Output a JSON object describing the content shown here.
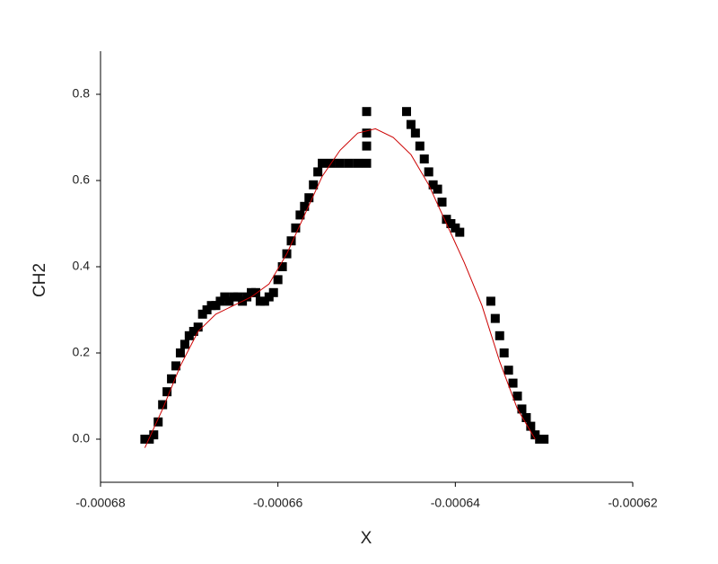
{
  "chart_data": {
    "type": "scatter",
    "xlabel": "X",
    "ylabel": "CH2",
    "xlim": [
      -0.00068,
      -0.00062
    ],
    "xticks": [
      -0.00068,
      -0.00066,
      -0.00064,
      -0.00062
    ],
    "ylim": [
      -0.1,
      0.9
    ],
    "yticks": [
      {
        "value": 0,
        "label": "0.0"
      },
      {
        "value": 0.2,
        "label": "0.2"
      },
      {
        "value": 0.4,
        "label": "0.4"
      },
      {
        "value": 0.6,
        "label": "0.6"
      },
      {
        "value": 0.8,
        "label": "0.8"
      }
    ],
    "grid": false,
    "series": [
      {
        "color": "#000000",
        "mark": "square",
        "x": [
          -0.000675,
          -0.0006745,
          -0.000674,
          -0.0006735,
          -0.000673,
          -0.0006725,
          -0.000672,
          -0.0006715,
          -0.000671,
          -0.0006705,
          -0.00067,
          -0.0006695,
          -0.000669,
          -0.0006685,
          -0.000668,
          -0.0006675,
          -0.000667,
          -0.0006665,
          -0.000666,
          -0.0006655,
          -0.000665,
          -0.0006645,
          -0.000664,
          -0.0006635,
          -0.000663,
          -0.0006625,
          -0.000662,
          -0.0006615,
          -0.000661,
          -0.0006605,
          -0.00066,
          -0.0006595,
          -0.000659,
          -0.0006585,
          -0.000658,
          -0.0006575,
          -0.000657,
          -0.0006565,
          -0.000656,
          -0.0006555,
          -0.000655,
          -0.000654,
          -0.000653,
          -0.000652,
          -0.000651,
          -0.00065,
          -0.00065,
          -0.00065,
          -0.00065,
          -0.0006455,
          -0.000645,
          -0.0006445,
          -0.000644,
          -0.0006435,
          -0.000643,
          -0.0006425,
          -0.000642,
          -0.0006415,
          -0.000641,
          -0.0006405,
          -0.00064,
          -0.0006395,
          -0.000636,
          -0.0006355,
          -0.000635,
          -0.0006345,
          -0.000634,
          -0.0006335,
          -0.000633,
          -0.0006325,
          -0.000632,
          -0.0006315,
          -0.000631,
          -0.0006305,
          -0.00063
        ],
        "values": [
          0,
          0,
          0.01,
          0.04,
          0.08,
          0.11,
          0.14,
          0.17,
          0.2,
          0.22,
          0.24,
          0.25,
          0.26,
          0.29,
          0.3,
          0.31,
          0.31,
          0.32,
          0.33,
          0.32,
          0.33,
          0.33,
          0.32,
          0.33,
          0.34,
          0.34,
          0.32,
          0.32,
          0.33,
          0.34,
          0.37,
          0.4,
          0.43,
          0.46,
          0.49,
          0.52,
          0.54,
          0.56,
          0.59,
          0.62,
          0.64,
          0.64,
          0.64,
          0.64,
          0.64,
          0.64,
          0.68,
          0.71,
          0.76,
          0.76,
          0.73,
          0.71,
          0.68,
          0.65,
          0.62,
          0.59,
          0.58,
          0.55,
          0.51,
          0.5,
          0.49,
          0.48,
          0.32,
          0.28,
          0.24,
          0.2,
          0.16,
          0.13,
          0.1,
          0.07,
          0.05,
          0.03,
          0.01,
          0,
          0
        ]
      },
      {
        "color": "#cc0000",
        "mark": "line",
        "x": [
          -0.000675,
          -0.000673,
          -0.000671,
          -0.000669,
          -0.000667,
          -0.000665,
          -0.000663,
          -0.000661,
          -0.000659,
          -0.000657,
          -0.000655,
          -0.000653,
          -0.000651,
          -0.000649,
          -0.000647,
          -0.000645,
          -0.000643,
          -0.000641,
          -0.000639,
          -0.000637,
          -0.000635,
          -0.000633,
          -0.000631
        ],
        "values": [
          -0.02,
          0.07,
          0.17,
          0.25,
          0.29,
          0.31,
          0.33,
          0.36,
          0.43,
          0.52,
          0.61,
          0.67,
          0.71,
          0.72,
          0.7,
          0.66,
          0.59,
          0.5,
          0.41,
          0.31,
          0.18,
          0.07,
          0
        ]
      }
    ]
  }
}
